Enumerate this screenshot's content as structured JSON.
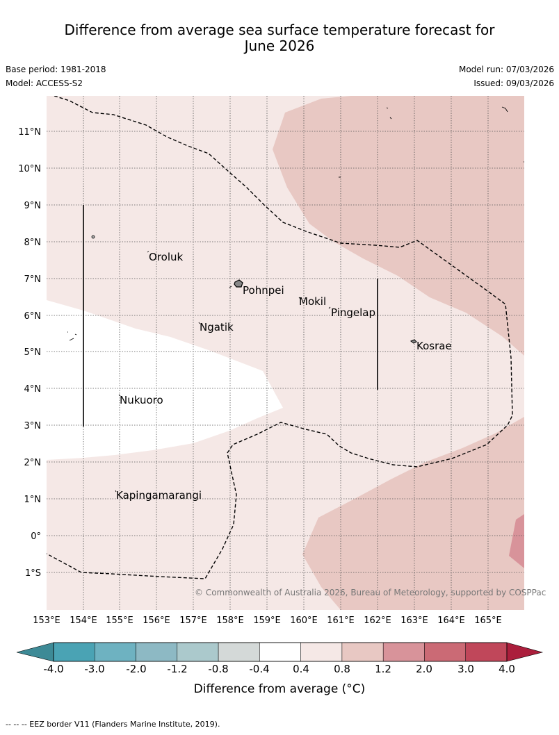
{
  "title_line1": "Difference from average sea surface temperature forecast for",
  "title_line2": "June 2026",
  "base_period": "Base period: 1981-2018",
  "model": "Model: ACCESS-S2",
  "model_run": "Model run: 07/03/2026",
  "issued": "Issued: 09/03/2026",
  "map": {
    "lon_labels": [
      "153°E",
      "154°E",
      "155°E",
      "156°E",
      "157°E",
      "158°E",
      "159°E",
      "160°E",
      "161°E",
      "162°E",
      "163°E",
      "164°E",
      "165°E"
    ],
    "lat_labels": [
      "11°N",
      "10°N",
      "9°N",
      "8°N",
      "7°N",
      "6°N",
      "5°N",
      "4°N",
      "3°N",
      "2°N",
      "1°N",
      "0°",
      "1°S"
    ],
    "places": [
      "Oroluk",
      "Pohnpei",
      "Mokil",
      "Pingelap",
      "Ngatik",
      "Kosrae",
      "Nukuoro",
      "Kapingamarangi"
    ],
    "copyright": "© Commonwealth of Australia 2026, Bureau of Meteorology, supported by COSPPac"
  },
  "colorbar": {
    "tick_labels": [
      "-4.0",
      "-3.0",
      "-2.0",
      "-1.2",
      "-0.8",
      "-0.4",
      "0.4",
      "0.8",
      "1.2",
      "2.0",
      "3.0",
      "4.0"
    ],
    "colors": [
      "#4aa3b4",
      "#6eb2c1",
      "#8db9c4",
      "#abc9cc",
      "#d4d9d8",
      "#ffffff",
      "#f5e8e6",
      "#e8c8c3",
      "#d8939a",
      "#cb6a75",
      "#c0475a"
    ],
    "low_extend_color": "#3d8a96",
    "high_extend_color": "#ab1e3c",
    "label": "Difference from average (°C)"
  },
  "footnote": "--  --  -- EEZ border V11 (Flanders Marine Institute, 2019)."
}
